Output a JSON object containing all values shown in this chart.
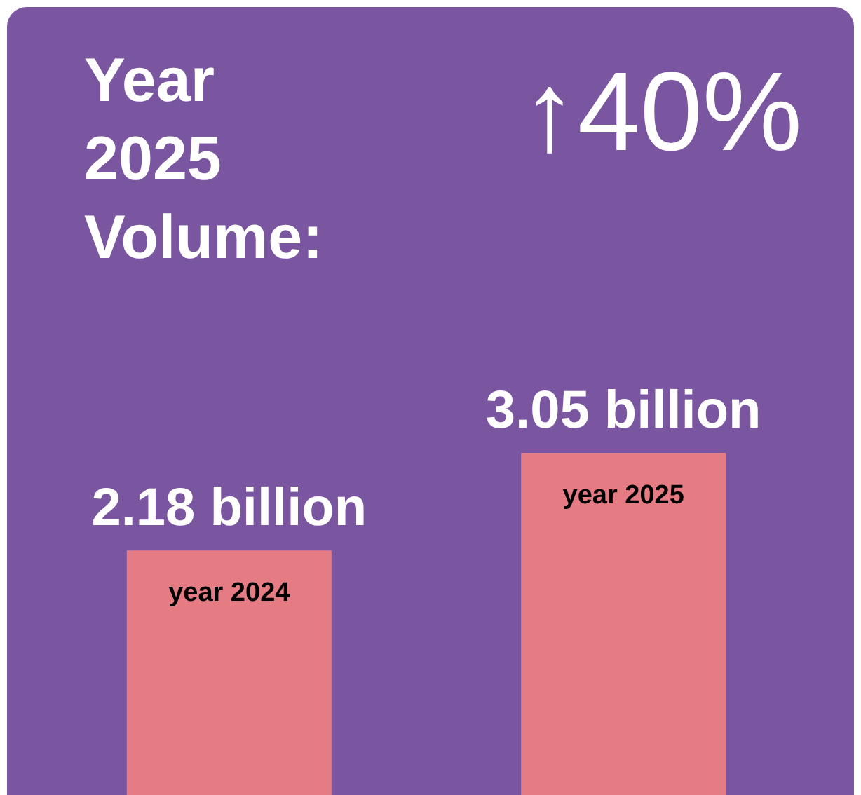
{
  "chart_data": {
    "type": "bar",
    "title": "Year 2025 Volume:",
    "annotations": [
      "↑40%"
    ],
    "categories": [
      "year 2024",
      "year 2025"
    ],
    "values": [
      2.18,
      3.05
    ],
    "value_labels": [
      "2.18 billion",
      "3.05 billion"
    ],
    "color": "#e57c84"
  }
}
